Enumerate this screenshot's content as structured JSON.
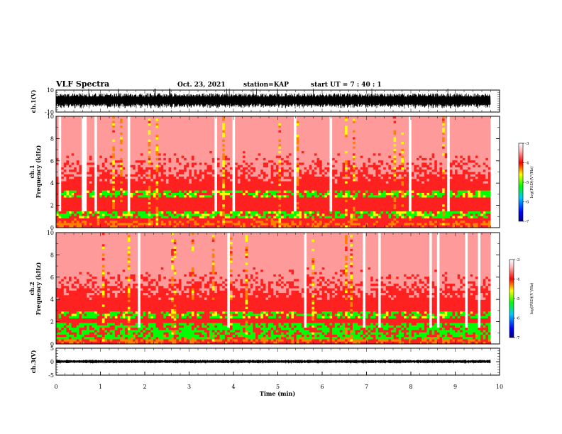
{
  "header": {
    "title": "VLF Spectra",
    "date": "Oct. 23, 2021",
    "station": "station=KAP",
    "start_ut": "start UT = 7 : 40 : 1"
  },
  "chart_data": [
    {
      "type": "line",
      "panel": "ch1-waveform",
      "ylabel": "ch.1(V)",
      "xlim": [
        0,
        10
      ],
      "ylim": [
        -10,
        10
      ],
      "yticks": [
        "10",
        "-10"
      ],
      "x_end": 9.8,
      "grid": false
    },
    {
      "type": "heatmap",
      "panel": "ch1-spectrogram",
      "ylabel": "ch.1\nFrequency (kHz)",
      "xlim": [
        0,
        10
      ],
      "ylim": [
        0,
        10
      ],
      "yticks": [
        "0",
        "2",
        "4",
        "6",
        "8",
        "10"
      ],
      "x_end": 9.8,
      "colorbar": {
        "ticks": [
          "-3",
          "-4",
          "-5",
          "-6",
          "-7"
        ],
        "range": [
          -7,
          -3
        ],
        "label": "log(PSD)(V²/Hz)"
      },
      "bands": [
        {
          "f_low": 0.9,
          "f_high": 1.5,
          "level": -5.0
        },
        {
          "f_low": 2.7,
          "f_high": 3.3,
          "level": -5.0
        }
      ]
    },
    {
      "type": "heatmap",
      "panel": "ch2-spectrogram",
      "ylabel": "ch.2\nFrequency (kHz)",
      "xlim": [
        0,
        10
      ],
      "ylim": [
        0,
        10
      ],
      "yticks": [
        "0",
        "2",
        "4",
        "6",
        "8",
        "10"
      ],
      "x_end": 9.8,
      "colorbar": {
        "ticks": [
          "-3",
          "-4",
          "-5",
          "-6",
          "-7"
        ],
        "range": [
          -7,
          -3
        ],
        "label": "log(PSD)(V²/Hz)"
      },
      "bands": [
        {
          "f_low": 0.5,
          "f_high": 1.8,
          "level": -5.2
        },
        {
          "f_low": 2.3,
          "f_high": 3.0,
          "level": -5.0
        }
      ]
    },
    {
      "type": "line",
      "panel": "ch3-waveform",
      "ylabel": "ch.3(V)",
      "xlabel": "Time (min)",
      "xlim": [
        0,
        10
      ],
      "ylim": [
        -5,
        5
      ],
      "yticks": [
        "5",
        "0",
        "-5"
      ],
      "xticks": [
        "0",
        "1",
        "2",
        "3",
        "4",
        "5",
        "6",
        "7",
        "8",
        "9",
        "10"
      ],
      "x_end": 9.8,
      "grid": false
    }
  ],
  "colors": {
    "colormap": [
      "#000080",
      "#0000ff",
      "#00c8ff",
      "#00ff00",
      "#ffff00",
      "#ff0000",
      "#ffffff"
    ]
  }
}
